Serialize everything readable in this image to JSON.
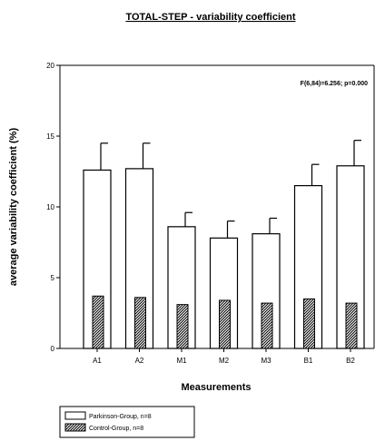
{
  "chart_data": {
    "type": "bar",
    "title": "TOTAL-STEP - variability coefficient",
    "xlabel": "Measurements",
    "ylabel": "average variability coefficient (%)",
    "categories": [
      "A1",
      "A2",
      "M1",
      "M2",
      "M3",
      "B1",
      "B2"
    ],
    "ylim": [
      0,
      20
    ],
    "yticks": [
      "0",
      "5",
      "10",
      "15",
      "20"
    ],
    "annotation": "F(6,84)=6.256; p=0.000",
    "grid": false,
    "legend_position": "bottom-left",
    "series": [
      {
        "name": "Parkinson-Group, n=8",
        "values": [
          12.6,
          12.7,
          8.6,
          7.8,
          8.1,
          11.5,
          12.9
        ],
        "errors": [
          1.9,
          1.8,
          1.0,
          1.2,
          1.1,
          1.5,
          1.8
        ],
        "fill": "#ffffff"
      },
      {
        "name": "Control-Group, n=8",
        "values": [
          3.7,
          3.6,
          3.1,
          3.4,
          3.2,
          3.5,
          3.2
        ],
        "errors": [
          0.3,
          0.3,
          0.2,
          0.2,
          0.1,
          0.2,
          0.2
        ],
        "fill": "hatched"
      }
    ]
  }
}
